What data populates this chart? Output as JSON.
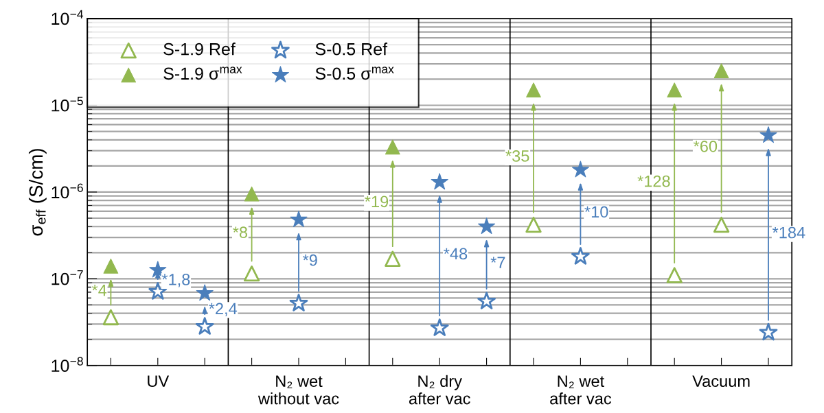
{
  "chart_data": {
    "type": "scatter",
    "ylabel": "σ$_{eff}$ (S/cm)",
    "log": "y",
    "categories": [
      null,
      "UV",
      null,
      null,
      "N₂ wet\nwithout vac",
      null,
      null,
      "N₂ dry\nafter vac",
      null,
      null,
      "N₂ wet\nafter vac",
      null,
      null,
      "Vacuum",
      null
    ],
    "ylim": [
      1e-08,
      0.0001
    ],
    "yticks": [
      {
        "value": 1e-08,
        "label": "10$^{−8}$"
      },
      {
        "value": 1e-07,
        "label": "10$^{−7}$"
      },
      {
        "value": 1e-06,
        "label": "10$^{−6}$"
      },
      {
        "value": 1e-05,
        "label": "10$^{−5}$"
      },
      {
        "value": 0.0001,
        "label": "10$^{−4}$"
      }
    ],
    "grid": "y",
    "legend": "top left",
    "series": [
      {
        "name": "S-1.9 Ref",
        "color": "#92b84f",
        "marker": "triangle",
        "values": [
          3.6e-08,
          null,
          null,
          1.15e-07,
          null,
          null,
          1.7e-07,
          null,
          null,
          4.2e-07,
          null,
          null,
          1.1e-07,
          4.2e-07,
          null
        ]
      },
      {
        "name": "S-1.9 σ$^{max}$",
        "color": "#92b84f",
        "marker": "triangle",
        "values": [
          1.4e-07,
          null,
          null,
          9.5e-07,
          null,
          null,
          3.3e-06,
          null,
          null,
          1.5e-05,
          null,
          null,
          1.5e-05,
          2.5e-05,
          null
        ]
      },
      {
        "name": "S-0.5 Ref",
        "color": "#4a7ebb",
        "marker": "star",
        "values": [
          null,
          7.1e-08,
          2.8e-08,
          null,
          5.2e-08,
          null,
          null,
          2.7e-08,
          5.5e-08,
          null,
          1.8e-07,
          null,
          null,
          null,
          2.4e-08
        ]
      },
      {
        "name": "S-0.5 σ$^{max}$",
        "color": "#4a7ebb",
        "marker": "star",
        "values": [
          null,
          1.26e-07,
          6.8e-08,
          null,
          4.8e-07,
          null,
          null,
          1.3e-06,
          4e-07,
          null,
          1.8e-06,
          null,
          null,
          null,
          4.5e-06
        ]
      }
    ],
    "annotations": [
      "*4",
      "*1,8",
      "*2,4",
      "*8",
      "*9",
      "*19",
      "*48",
      "*7",
      "*35",
      "*10",
      "*128",
      "*60",
      "*184"
    ]
  }
}
